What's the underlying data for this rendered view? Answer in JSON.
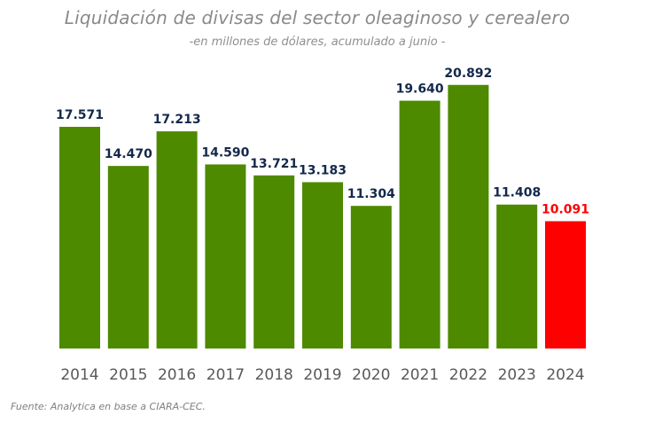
{
  "chart_data": {
    "type": "bar",
    "title": "Liquidación de divisas del sector oleaginoso y cerealero",
    "subtitle": "-en millones de dólares, acumulado a junio -",
    "categories": [
      "2014",
      "2015",
      "2016",
      "2017",
      "2018",
      "2019",
      "2020",
      "2021",
      "2022",
      "2023",
      "2024"
    ],
    "values": [
      17571,
      14470,
      17213,
      14590,
      13721,
      13183,
      11304,
      19640,
      20892,
      11408,
      10091
    ],
    "value_labels": [
      "17.571",
      "14.470",
      "17.213",
      "14.590",
      "13.721",
      "13.183",
      "11.304",
      "19.640",
      "20.892",
      "11.408",
      "10.091"
    ],
    "highlight_index": 10,
    "ylim": [
      0,
      22000
    ],
    "grid": false,
    "legend": "none",
    "colors": {
      "bar": "#4d8a00",
      "highlight_bar": "#ff0000",
      "value_label": "#14284b",
      "highlight_label": "#ff0000",
      "axis_label": "#595959"
    }
  },
  "source": "Fuente: Analytica en base a CIARA-CEC."
}
